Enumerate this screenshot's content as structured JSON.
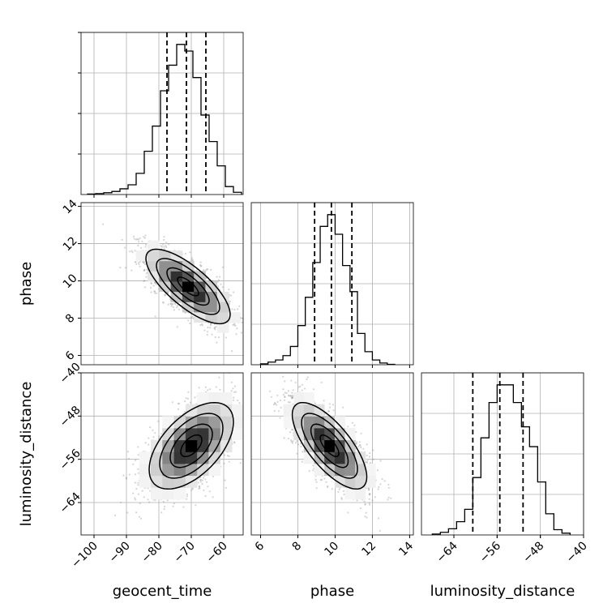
{
  "chart_data": {
    "type": "corner",
    "parameters": [
      {
        "key": "geocent_time",
        "label": "geocent_time",
        "range": [
          -104,
          -54
        ],
        "ticks": [
          -100,
          -90,
          -80,
          -70,
          -60
        ]
      },
      {
        "key": "phase",
        "label": "phase",
        "range": [
          5.5,
          14.2
        ],
        "ticks": [
          6,
          8,
          10,
          12,
          14
        ]
      },
      {
        "key": "luminosity_distance",
        "label": "luminosity_distance",
        "range": [
          -70,
          -40
        ],
        "ticks": [
          -64,
          -56,
          -48,
          -40
        ]
      }
    ],
    "grid": true,
    "marginals": [
      {
        "param": "geocent_time",
        "quantiles": [
          -77.5,
          -71.5,
          -65.5
        ],
        "bin_edges": [
          -102,
          -99.5,
          -97,
          -94.5,
          -92,
          -89.5,
          -87,
          -84.5,
          -82,
          -79.5,
          -77,
          -74.5,
          -72,
          -69.5,
          -67,
          -64.5,
          -62,
          -59.5,
          -57,
          -54.5
        ],
        "counts": [
          1,
          2,
          4,
          7,
          13,
          22,
          48,
          98,
          155,
          235,
          293,
          340,
          325,
          265,
          180,
          120,
          65,
          18,
          5
        ]
      },
      {
        "param": "phase",
        "quantiles": [
          8.9,
          9.8,
          10.9
        ],
        "bin_edges": [
          6.0,
          6.4,
          6.8,
          7.2,
          7.6,
          8.0,
          8.4,
          8.8,
          9.2,
          9.6,
          10.0,
          10.4,
          10.8,
          11.2,
          11.6,
          12.0,
          12.4,
          12.8,
          13.2
        ],
        "counts": [
          2,
          6,
          11,
          21,
          42,
          90,
          155,
          235,
          318,
          345,
          300,
          228,
          168,
          72,
          30,
          11,
          4,
          1
        ]
      },
      {
        "param": "luminosity_distance",
        "quantiles": [
          -60.5,
          -55.5,
          -51.2
        ],
        "bin_edges": [
          -68,
          -66.5,
          -65,
          -63.5,
          -62,
          -60.5,
          -59,
          -57.5,
          -56,
          -54.5,
          -53,
          -51.5,
          -50,
          -48.5,
          -47,
          -45.5,
          -44,
          -42.5
        ],
        "counts": [
          2,
          6,
          14,
          30,
          58,
          130,
          220,
          300,
          340,
          340,
          300,
          245,
          200,
          120,
          48,
          12,
          4
        ]
      }
    ],
    "joint": [
      {
        "x": "geocent_time",
        "y": "phase",
        "center": [
          -71,
          9.7
        ],
        "sd": [
          6.5,
          1.0
        ],
        "rho": -0.75
      },
      {
        "x": "geocent_time",
        "y": "luminosity_distance",
        "center": [
          -70,
          -53.5
        ],
        "sd": [
          6.5,
          4.0
        ],
        "rho": 0.55
      },
      {
        "x": "phase",
        "y": "luminosity_distance",
        "center": [
          9.7,
          -53.5
        ],
        "sd": [
          1.0,
          4.0
        ],
        "rho": -0.72
      }
    ]
  }
}
